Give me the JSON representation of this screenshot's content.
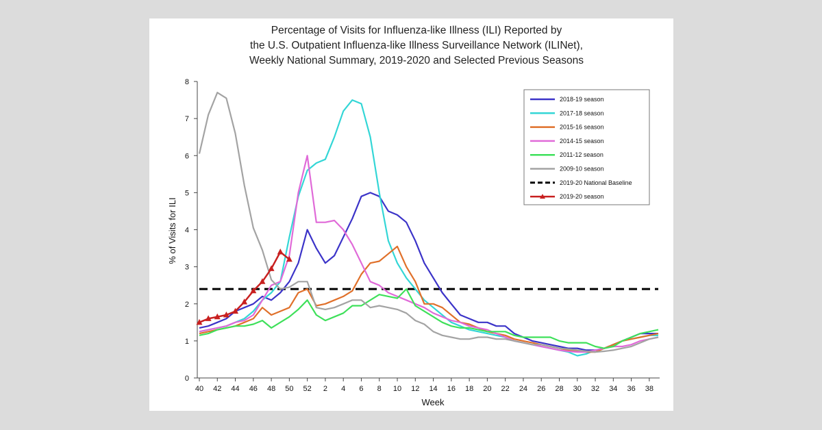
{
  "chart_data": {
    "type": "line",
    "title_lines": [
      "Percentage of Visits for Influenza-like Illness (ILI) Reported by",
      "the U.S. Outpatient Influenza-like Illness Surveillance Network (ILINet),",
      "Weekly National Summary, 2019-2020 and Selected Previous Seasons"
    ],
    "xlabel": "Week",
    "ylabel": "% of Visits for ILI",
    "ylim": [
      0,
      8
    ],
    "yticks": [
      "0",
      "1",
      "2",
      "3",
      "4",
      "5",
      "6",
      "7",
      "8"
    ],
    "xticks": [
      "40",
      "42",
      "44",
      "46",
      "48",
      "50",
      "52",
      "2",
      "4",
      "6",
      "8",
      "10",
      "12",
      "14",
      "16",
      "18",
      "20",
      "22",
      "24",
      "26",
      "28",
      "30",
      "32",
      "34",
      "36",
      "38"
    ],
    "weeks": [
      40,
      41,
      42,
      43,
      44,
      45,
      46,
      47,
      48,
      49,
      50,
      51,
      52,
      1,
      2,
      3,
      4,
      5,
      6,
      7,
      8,
      9,
      10,
      11,
      12,
      13,
      14,
      15,
      16,
      17,
      18,
      19,
      20,
      21,
      22,
      23,
      24,
      25,
      26,
      27,
      28,
      29,
      30,
      31,
      32,
      33,
      34,
      35,
      36,
      37,
      38,
      39
    ],
    "grid": false,
    "legend_position": "top-right",
    "series": [
      {
        "name": "2018-19 season",
        "color": "#3b33c8",
        "style": "solid",
        "values": [
          1.35,
          1.4,
          1.5,
          1.6,
          1.8,
          1.9,
          2.0,
          2.2,
          2.1,
          2.3,
          2.6,
          3.1,
          4.0,
          3.5,
          3.1,
          3.3,
          3.8,
          4.3,
          4.9,
          5.0,
          4.9,
          4.5,
          4.4,
          4.2,
          3.7,
          3.1,
          2.7,
          2.3,
          2.0,
          1.7,
          1.6,
          1.5,
          1.5,
          1.4,
          1.4,
          1.2,
          1.1,
          1.0,
          0.95,
          0.9,
          0.85,
          0.8,
          0.8,
          0.75,
          0.75,
          0.8,
          0.9,
          1.0,
          1.1,
          1.2,
          1.2,
          1.2
        ]
      },
      {
        "name": "2017-18 season",
        "color": "#33d6d6",
        "style": "solid",
        "values": [
          1.25,
          1.3,
          1.35,
          1.4,
          1.5,
          1.6,
          1.8,
          2.1,
          2.3,
          2.6,
          3.8,
          4.9,
          5.6,
          5.8,
          5.9,
          6.5,
          7.2,
          7.5,
          7.4,
          6.5,
          5.0,
          3.7,
          3.1,
          2.7,
          2.4,
          2.1,
          1.9,
          1.7,
          1.5,
          1.4,
          1.3,
          1.25,
          1.2,
          1.15,
          1.1,
          1.0,
          0.95,
          0.9,
          0.85,
          0.8,
          0.75,
          0.7,
          0.6,
          0.65,
          0.75,
          0.8,
          0.9,
          1.0,
          1.05,
          1.1,
          1.15,
          1.15
        ]
      },
      {
        "name": "2015-16 season",
        "color": "#e0702a",
        "style": "solid",
        "values": [
          1.2,
          1.25,
          1.3,
          1.35,
          1.4,
          1.5,
          1.6,
          1.9,
          1.7,
          1.8,
          1.9,
          2.3,
          2.4,
          1.95,
          2.0,
          2.1,
          2.2,
          2.35,
          2.8,
          3.1,
          3.15,
          3.35,
          3.55,
          3.0,
          2.6,
          2.0,
          2.0,
          1.9,
          1.7,
          1.5,
          1.45,
          1.35,
          1.25,
          1.2,
          1.15,
          1.05,
          1.0,
          0.95,
          0.9,
          0.85,
          0.8,
          0.75,
          0.72,
          0.7,
          0.7,
          0.8,
          0.9,
          1.0,
          1.05,
          1.1,
          1.15,
          1.2
        ]
      },
      {
        "name": "2014-15 season",
        "color": "#e06ad8",
        "style": "solid",
        "values": [
          1.25,
          1.3,
          1.35,
          1.4,
          1.5,
          1.55,
          1.7,
          2.1,
          2.5,
          2.6,
          3.3,
          5.0,
          6.0,
          4.2,
          4.2,
          4.25,
          4.0,
          3.6,
          3.1,
          2.6,
          2.5,
          2.3,
          2.2,
          2.1,
          2.0,
          1.9,
          1.75,
          1.65,
          1.55,
          1.5,
          1.4,
          1.35,
          1.3,
          1.2,
          1.1,
          1.0,
          0.95,
          0.9,
          0.85,
          0.8,
          0.75,
          0.72,
          0.7,
          0.7,
          0.75,
          0.8,
          0.85,
          0.85,
          0.9,
          1.0,
          1.05,
          1.1
        ]
      },
      {
        "name": "2011-12 season",
        "color": "#3ee05a",
        "style": "solid",
        "values": [
          1.15,
          1.2,
          1.3,
          1.35,
          1.4,
          1.4,
          1.45,
          1.55,
          1.35,
          1.5,
          1.65,
          1.85,
          2.1,
          1.7,
          1.55,
          1.65,
          1.75,
          1.95,
          1.95,
          2.1,
          2.25,
          2.2,
          2.15,
          2.4,
          1.95,
          1.8,
          1.65,
          1.5,
          1.4,
          1.35,
          1.35,
          1.3,
          1.25,
          1.25,
          1.25,
          1.15,
          1.1,
          1.1,
          1.1,
          1.1,
          1.0,
          0.95,
          0.95,
          0.95,
          0.85,
          0.8,
          0.85,
          1.0,
          1.1,
          1.2,
          1.25,
          1.3
        ]
      },
      {
        "name": "2009-10 season",
        "color": "#a3a3a3",
        "style": "solid",
        "values": [
          6.05,
          7.1,
          7.7,
          7.55,
          6.6,
          5.2,
          4.05,
          3.45,
          2.65,
          2.4,
          2.45,
          2.6,
          2.6,
          1.9,
          1.85,
          1.9,
          2.0,
          2.1,
          2.1,
          1.9,
          1.95,
          1.9,
          1.85,
          1.75,
          1.55,
          1.45,
          1.25,
          1.15,
          1.1,
          1.05,
          1.05,
          1.1,
          1.1,
          1.05,
          1.05,
          1.0,
          0.95,
          0.9,
          0.9,
          0.85,
          0.8,
          0.78,
          0.75,
          0.72,
          0.7,
          0.72,
          0.75,
          0.8,
          0.85,
          0.95,
          1.05,
          1.1
        ]
      },
      {
        "name": "2019-20 season",
        "color": "#c82020",
        "style": "marker",
        "values": [
          1.5,
          1.6,
          1.65,
          1.7,
          1.8,
          2.05,
          2.35,
          2.6,
          2.95,
          3.4,
          3.2
        ]
      }
    ],
    "baseline": {
      "name": "2019-20 National Baseline",
      "value": 2.4,
      "color": "#000000",
      "style": "dashed"
    }
  }
}
